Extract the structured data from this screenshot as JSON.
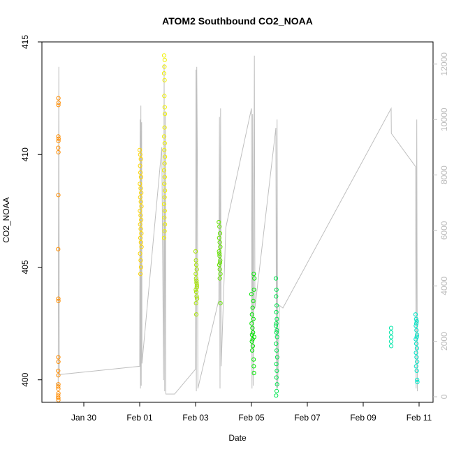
{
  "chart_data": {
    "type": "scatter",
    "title": "ATOM2 Southbound CO2_NOAA",
    "xlabel": "Date",
    "ylabel": "CO2_NOAA",
    "x_unit": "days in 2016",
    "xlim": [
      "2016-01-28T12:00",
      "2016-02-11T12:00"
    ],
    "ylim": [
      399,
      415
    ],
    "yticks": [
      400,
      405,
      410,
      415
    ],
    "xticks": [
      {
        "date": "2016-01-30",
        "label": "Jan 30"
      },
      {
        "date": "2016-02-01",
        "label": "Feb 01"
      },
      {
        "date": "2016-02-03",
        "label": "Feb 03"
      },
      {
        "date": "2016-02-05",
        "label": "Feb 05"
      },
      {
        "date": "2016-02-07",
        "label": "Feb 07"
      },
      {
        "date": "2016-02-09",
        "label": "Feb 09"
      },
      {
        "date": "2016-02-11",
        "label": "Feb 11"
      }
    ],
    "y2lim": [
      -200,
      12800
    ],
    "y2ticks": [
      0,
      2000,
      4000,
      6000,
      8000,
      10000,
      12000
    ],
    "y2_color": "#bdbdbd",
    "grid": false,
    "series": [
      {
        "color": "#ff8c00",
        "points": [
          [
            "2016-01-29T02:10",
            412.5
          ],
          [
            "2016-01-29T02:10",
            412.2
          ],
          [
            "2016-01-29T02:15",
            412.3
          ],
          [
            "2016-01-29T02:05",
            410.8
          ],
          [
            "2016-01-29T02:10",
            410.6
          ],
          [
            "2016-01-29T02:15",
            410.7
          ],
          [
            "2016-01-29T02:00",
            410.3
          ],
          [
            "2016-01-29T02:10",
            410.1
          ],
          [
            "2016-01-29T02:05",
            408.2
          ],
          [
            "2016-01-29T02:00",
            405.8
          ],
          [
            "2016-01-29T02:05",
            403.6
          ],
          [
            "2016-01-29T02:10",
            403.5
          ],
          [
            "2016-01-29T02:05",
            401.0
          ],
          [
            "2016-01-29T02:10",
            400.8
          ],
          [
            "2016-01-29T02:00",
            400.4
          ],
          [
            "2016-01-29T02:05",
            400.2
          ],
          [
            "2016-01-29T02:10",
            399.8
          ],
          [
            "2016-01-29T02:00",
            399.7
          ],
          [
            "2016-01-29T02:05",
            399.6
          ],
          [
            "2016-01-29T02:10",
            399.4
          ],
          [
            "2016-01-29T02:00",
            399.3
          ],
          [
            "2016-01-29T02:05",
            399.2
          ],
          [
            "2016-01-29T02:10",
            399.1
          ],
          [
            "2016-01-29T02:00",
            399.2
          ]
        ]
      },
      {
        "color": "#ffd700",
        "points": [
          [
            "2016-02-01T00:00",
            410.2
          ],
          [
            "2016-02-01T00:30",
            410.0
          ],
          [
            "2016-02-01T01:00",
            409.8
          ],
          [
            "2016-02-01T00:20",
            409.5
          ],
          [
            "2016-02-01T00:40",
            409.2
          ],
          [
            "2016-02-01T01:10",
            409.0
          ],
          [
            "2016-02-01T00:10",
            408.7
          ],
          [
            "2016-02-01T00:50",
            408.5
          ],
          [
            "2016-02-01T01:20",
            408.3
          ],
          [
            "2016-02-01T00:30",
            408.1
          ],
          [
            "2016-02-01T01:00",
            407.9
          ],
          [
            "2016-02-01T01:30",
            407.7
          ],
          [
            "2016-02-01T00:15",
            407.5
          ],
          [
            "2016-02-01T00:45",
            407.3
          ],
          [
            "2016-02-01T01:15",
            407.1
          ],
          [
            "2016-02-01T00:25",
            406.9
          ],
          [
            "2016-02-01T00:55",
            406.7
          ],
          [
            "2016-02-01T01:25",
            406.5
          ],
          [
            "2016-02-01T00:35",
            406.3
          ],
          [
            "2016-02-01T01:05",
            406.1
          ],
          [
            "2016-02-01T01:35",
            405.9
          ],
          [
            "2016-02-01T00:20",
            405.6
          ],
          [
            "2016-02-01T00:50",
            405.3
          ],
          [
            "2016-02-01T01:10",
            405.0
          ],
          [
            "2016-02-01T00:40",
            404.7
          ]
        ]
      },
      {
        "color": "#f0f000",
        "points": [
          [
            "2016-02-01T21:00",
            414.4
          ],
          [
            "2016-02-01T21:30",
            414.2
          ],
          [
            "2016-02-01T21:15",
            413.9
          ],
          [
            "2016-02-01T21:00",
            413.6
          ],
          [
            "2016-02-01T21:20",
            413.3
          ],
          [
            "2016-02-01T21:10",
            412.6
          ],
          [
            "2016-02-01T21:30",
            412.1
          ],
          [
            "2016-02-01T21:40",
            411.8
          ],
          [
            "2016-02-01T21:20",
            411.2
          ],
          [
            "2016-02-01T21:00",
            410.8
          ],
          [
            "2016-02-01T21:30",
            410.5
          ],
          [
            "2016-02-01T21:10",
            410.2
          ],
          [
            "2016-02-01T21:40",
            409.9
          ],
          [
            "2016-02-01T21:20",
            409.6
          ],
          [
            "2016-02-01T21:00",
            409.3
          ],
          [
            "2016-02-01T21:30",
            409.0
          ],
          [
            "2016-02-01T21:10",
            408.7
          ],
          [
            "2016-02-01T21:40",
            408.4
          ],
          [
            "2016-02-01T21:20",
            408.1
          ],
          [
            "2016-02-01T21:00",
            407.8
          ],
          [
            "2016-02-01T21:30",
            407.5
          ],
          [
            "2016-02-01T21:10",
            407.2
          ],
          [
            "2016-02-01T21:40",
            406.9
          ],
          [
            "2016-02-01T21:20",
            406.6
          ],
          [
            "2016-02-01T21:00",
            406.3
          ]
        ]
      },
      {
        "color": "#a8e600",
        "points": [
          [
            "2016-02-03T00:00",
            405.7
          ],
          [
            "2016-02-03T00:20",
            405.3
          ],
          [
            "2016-02-03T00:40",
            405.1
          ],
          [
            "2016-02-03T01:00",
            404.9
          ],
          [
            "2016-02-03T00:10",
            404.7
          ],
          [
            "2016-02-03T00:30",
            404.5
          ],
          [
            "2016-02-03T00:50",
            404.3
          ],
          [
            "2016-02-03T01:10",
            404.2
          ],
          [
            "2016-02-03T00:15",
            404.0
          ],
          [
            "2016-02-03T00:35",
            403.9
          ],
          [
            "2016-02-03T00:55",
            403.7
          ],
          [
            "2016-02-03T01:15",
            403.6
          ],
          [
            "2016-02-03T00:25",
            403.4
          ],
          [
            "2016-02-03T00:45",
            404.4
          ],
          [
            "2016-02-03T01:05",
            404.1
          ],
          [
            "2016-02-03T00:40",
            402.9
          ]
        ]
      },
      {
        "color": "#66e600",
        "points": [
          [
            "2016-02-03T20:00",
            407.0
          ],
          [
            "2016-02-03T20:30",
            406.8
          ],
          [
            "2016-02-03T21:00",
            406.5
          ],
          [
            "2016-02-03T20:15",
            406.3
          ],
          [
            "2016-02-03T20:45",
            406.1
          ],
          [
            "2016-02-03T21:15",
            405.9
          ],
          [
            "2016-02-03T20:10",
            405.7
          ],
          [
            "2016-02-03T20:40",
            405.5
          ],
          [
            "2016-02-03T21:10",
            405.3
          ],
          [
            "2016-02-03T20:20",
            405.1
          ],
          [
            "2016-02-03T20:50",
            404.9
          ],
          [
            "2016-02-03T21:20",
            404.7
          ],
          [
            "2016-02-03T20:30",
            405.6
          ],
          [
            "2016-02-03T21:00",
            405.2
          ],
          [
            "2016-02-03T21:20",
            403.4
          ],
          [
            "2016-02-03T20:50",
            404.5
          ]
        ]
      },
      {
        "color": "#00e600",
        "points": [
          [
            "2016-02-05T00:00",
            403.8
          ],
          [
            "2016-02-05T02:00",
            404.7
          ],
          [
            "2016-02-05T02:30",
            404.5
          ],
          [
            "2016-02-05T02:10",
            404.0
          ],
          [
            "2016-02-05T01:30",
            403.5
          ],
          [
            "2016-02-05T01:00",
            403.2
          ],
          [
            "2016-02-05T00:30",
            402.9
          ],
          [
            "2016-02-05T01:40",
            402.7
          ],
          [
            "2016-02-05T00:10",
            402.5
          ],
          [
            "2016-02-05T00:50",
            402.3
          ],
          [
            "2016-02-05T01:20",
            402.1
          ],
          [
            "2016-02-05T02:20",
            401.9
          ],
          [
            "2016-02-05T00:20",
            401.7
          ],
          [
            "2016-02-05T01:10",
            401.5
          ],
          [
            "2016-02-05T00:40",
            401.3
          ],
          [
            "2016-02-05T01:50",
            400.9
          ],
          [
            "2016-02-05T02:00",
            400.6
          ],
          [
            "2016-02-05T02:10",
            400.3
          ],
          [
            "2016-02-05T00:30",
            402.0
          ],
          [
            "2016-02-05T01:00",
            401.8
          ]
        ]
      },
      {
        "color": "#00e650",
        "points": [
          [
            "2016-02-05T21:00",
            404.5
          ],
          [
            "2016-02-05T21:30",
            404.0
          ],
          [
            "2016-02-05T21:10",
            403.7
          ],
          [
            "2016-02-05T21:40",
            403.3
          ],
          [
            "2016-02-05T21:20",
            403.0
          ],
          [
            "2016-02-05T21:50",
            402.7
          ],
          [
            "2016-02-05T21:00",
            402.4
          ],
          [
            "2016-02-05T21:30",
            402.1
          ],
          [
            "2016-02-05T22:00",
            401.9
          ],
          [
            "2016-02-05T21:10",
            401.6
          ],
          [
            "2016-02-05T21:40",
            401.3
          ],
          [
            "2016-02-05T22:10",
            401.0
          ],
          [
            "2016-02-05T21:20",
            400.7
          ],
          [
            "2016-02-05T21:50",
            400.4
          ],
          [
            "2016-02-05T21:30",
            400.1
          ],
          [
            "2016-02-05T22:00",
            399.8
          ],
          [
            "2016-02-05T21:40",
            399.5
          ],
          [
            "2016-02-05T21:10",
            399.3
          ],
          [
            "2016-02-05T21:20",
            402.5
          ],
          [
            "2016-02-05T21:50",
            402.2
          ]
        ]
      },
      {
        "color": "#00e6a8",
        "points": [
          [
            "2016-02-10T00:00",
            402.3
          ],
          [
            "2016-02-10T00:00",
            402.1
          ],
          [
            "2016-02-10T00:05",
            401.9
          ],
          [
            "2016-02-10T00:00",
            401.7
          ],
          [
            "2016-02-10T00:05",
            401.5
          ]
        ]
      },
      {
        "color": "#00e6c8",
        "points": [
          [
            "2016-02-10T21:00",
            402.9
          ],
          [
            "2016-02-10T21:30",
            402.7
          ],
          [
            "2016-02-10T22:00",
            402.6
          ],
          [
            "2016-02-10T21:15",
            402.4
          ],
          [
            "2016-02-10T21:45",
            402.2
          ],
          [
            "2016-02-10T22:15",
            402.0
          ],
          [
            "2016-02-10T21:10",
            401.8
          ],
          [
            "2016-02-10T21:40",
            401.6
          ],
          [
            "2016-02-10T22:10",
            401.4
          ],
          [
            "2016-02-10T21:20",
            401.2
          ],
          [
            "2016-02-10T21:50",
            401.0
          ],
          [
            "2016-02-10T22:20",
            400.8
          ],
          [
            "2016-02-10T21:30",
            400.6
          ],
          [
            "2016-02-10T22:00",
            400.4
          ],
          [
            "2016-02-10T22:20",
            400.0
          ],
          [
            "2016-02-10T22:30",
            399.9
          ],
          [
            "2016-02-10T21:40",
            402.5
          ],
          [
            "2016-02-10T22:00",
            401.9
          ]
        ]
      }
    ],
    "altitude_line": {
      "color": "#bfbfbf",
      "points": [
        [
          "2016-01-29T00:00",
          500
        ],
        [
          "2016-01-29T02:00",
          400
        ],
        [
          "2016-01-29T02:30",
          11900
        ],
        [
          "2016-01-29T03:00",
          800
        ],
        [
          "2016-02-01T00:00",
          1100
        ],
        [
          "2016-02-01T00:20",
          10000
        ],
        [
          "2016-02-01T00:40",
          300
        ],
        [
          "2016-02-01T01:00",
          10500
        ],
        [
          "2016-02-01T01:20",
          400
        ],
        [
          "2016-02-01T01:40",
          9900
        ],
        [
          "2016-02-01T02:00",
          1200
        ],
        [
          "2016-02-01T19:00",
          9000
        ],
        [
          "2016-02-01T20:30",
          600
        ],
        [
          "2016-02-01T21:00",
          12000
        ],
        [
          "2016-02-01T21:30",
          200
        ],
        [
          "2016-02-01T22:00",
          10300
        ],
        [
          "2016-02-01T22:30",
          100
        ],
        [
          "2016-02-02T06:00",
          100
        ],
        [
          "2016-02-03T00:00",
          1000
        ],
        [
          "2016-02-03T00:20",
          11800
        ],
        [
          "2016-02-03T00:40",
          200
        ],
        [
          "2016-02-03T01:00",
          11900
        ],
        [
          "2016-02-03T01:30",
          8900
        ],
        [
          "2016-02-03T02:00",
          300
        ],
        [
          "2016-02-03T20:00",
          3500
        ],
        [
          "2016-02-03T20:30",
          10100
        ],
        [
          "2016-02-03T21:00",
          300
        ],
        [
          "2016-02-03T21:30",
          10400
        ],
        [
          "2016-02-03T22:00",
          1100
        ],
        [
          "2016-02-04T02:00",
          6100
        ],
        [
          "2016-02-05T00:00",
          10400
        ],
        [
          "2016-02-05T00:30",
          300
        ],
        [
          "2016-02-05T01:00",
          10200
        ],
        [
          "2016-02-05T01:30",
          400
        ],
        [
          "2016-02-05T02:30",
          12300
        ],
        [
          "2016-02-05T03:00",
          3200
        ],
        [
          "2016-02-05T21:00",
          9700
        ],
        [
          "2016-02-05T21:30",
          300
        ],
        [
          "2016-02-05T22:00",
          10000
        ],
        [
          "2016-02-05T22:30",
          300
        ],
        [
          "2016-02-06T00:00",
          3300
        ],
        [
          "2016-02-06T03:00",
          3200
        ],
        [
          "2016-02-10T00:00",
          10400
        ],
        [
          "2016-02-10T00:10",
          9500
        ],
        [
          "2016-02-10T21:00",
          8300
        ],
        [
          "2016-02-10T21:30",
          300
        ],
        [
          "2016-02-10T22:00",
          10000
        ],
        [
          "2016-02-10T22:30",
          200
        ]
      ]
    }
  }
}
